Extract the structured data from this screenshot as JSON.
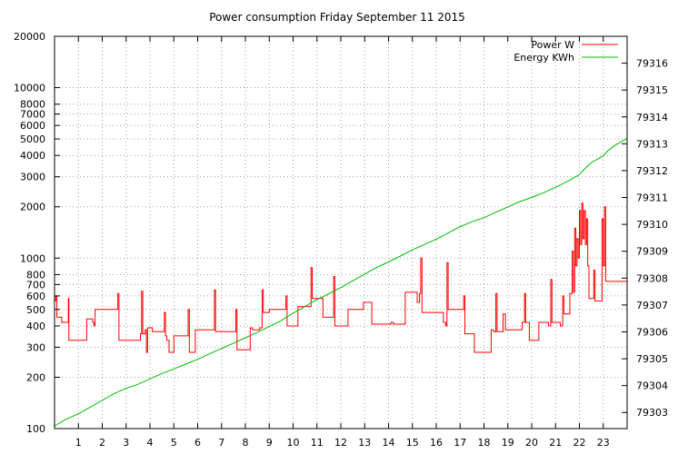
{
  "chart_data": {
    "type": "line",
    "title": "Power consumption Friday September 11 2015",
    "x": {
      "range": [
        0,
        24
      ],
      "ticks": [
        1,
        2,
        3,
        4,
        5,
        6,
        7,
        8,
        9,
        10,
        11,
        12,
        13,
        14,
        15,
        16,
        17,
        18,
        19,
        20,
        21,
        22,
        23
      ],
      "tick_labels": [
        "1",
        "2",
        "3",
        "4",
        "5",
        "6",
        "7",
        "8",
        "9",
        "10",
        "11",
        "12",
        "13",
        "14",
        "15",
        "16",
        "17",
        "18",
        "19",
        "20",
        "21",
        "22",
        "23"
      ]
    },
    "y_left": {
      "scale": "log",
      "range": [
        100,
        20000
      ],
      "ticks": [
        100,
        200,
        300,
        400,
        500,
        600,
        700,
        800,
        1000,
        2000,
        3000,
        4000,
        5000,
        6000,
        7000,
        8000,
        10000,
        20000
      ],
      "tick_labels": [
        "100",
        "200",
        "300",
        "400",
        "500",
        "600",
        "700",
        "800",
        "1000",
        "2000",
        "3000",
        "4000",
        "5000",
        "6000",
        "7000",
        "8000",
        "10000",
        "20000"
      ]
    },
    "y_right": {
      "scale": "linear",
      "range": [
        79302.4,
        79317
      ],
      "ticks": [
        79303,
        79304,
        79305,
        79306,
        79307,
        79308,
        79309,
        79310,
        79311,
        79312,
        79313,
        79314,
        79315,
        79316
      ],
      "tick_labels": [
        "79303",
        "79304",
        "79305",
        "79306",
        "79307",
        "79308",
        "79309",
        "79310",
        "79311",
        "79312",
        "79313",
        "79314",
        "79315",
        "79316"
      ]
    },
    "grid": true,
    "legend_position": "top-right",
    "series": [
      {
        "name": "Power W",
        "axis": "left",
        "color": "#ff0000",
        "step": true,
        "points": [
          [
            0,
            560
          ],
          [
            0.05,
            600
          ],
          [
            0.1,
            450
          ],
          [
            0.3,
            420
          ],
          [
            0.55,
            420
          ],
          [
            0.58,
            580
          ],
          [
            0.6,
            330
          ],
          [
            1.0,
            330
          ],
          [
            1.3,
            330
          ],
          [
            1.35,
            440
          ],
          [
            1.6,
            420
          ],
          [
            1.65,
            400
          ],
          [
            1.7,
            500
          ],
          [
            2.5,
            500
          ],
          [
            2.65,
            620
          ],
          [
            2.7,
            330
          ],
          [
            3.5,
            330
          ],
          [
            3.6,
            360
          ],
          [
            3.65,
            640
          ],
          [
            3.7,
            360
          ],
          [
            3.8,
            380
          ],
          [
            3.85,
            280
          ],
          [
            3.9,
            390
          ],
          [
            4.1,
            370
          ],
          [
            4.5,
            370
          ],
          [
            4.6,
            480
          ],
          [
            4.65,
            350
          ],
          [
            4.7,
            330
          ],
          [
            4.8,
            280
          ],
          [
            5.0,
            350
          ],
          [
            5.5,
            350
          ],
          [
            5.6,
            500
          ],
          [
            5.65,
            280
          ],
          [
            5.9,
            380
          ],
          [
            6.5,
            380
          ],
          [
            6.7,
            650
          ],
          [
            6.75,
            370
          ],
          [
            7.5,
            370
          ],
          [
            7.6,
            500
          ],
          [
            7.65,
            290
          ],
          [
            8.1,
            290
          ],
          [
            8.2,
            390
          ],
          [
            8.3,
            380
          ],
          [
            8.5,
            380
          ],
          [
            8.6,
            390
          ],
          [
            8.7,
            650
          ],
          [
            8.75,
            480
          ],
          [
            9.0,
            500
          ],
          [
            9.6,
            500
          ],
          [
            9.7,
            600
          ],
          [
            9.75,
            400
          ],
          [
            10.0,
            400
          ],
          [
            10.2,
            520
          ],
          [
            10.7,
            520
          ],
          [
            10.75,
            880
          ],
          [
            10.8,
            580
          ],
          [
            11.2,
            580
          ],
          [
            11.25,
            450
          ],
          [
            11.6,
            450
          ],
          [
            11.7,
            780
          ],
          [
            11.75,
            400
          ],
          [
            12.2,
            400
          ],
          [
            12.3,
            500
          ],
          [
            12.9,
            500
          ],
          [
            12.95,
            550
          ],
          [
            13.2,
            550
          ],
          [
            13.3,
            410
          ],
          [
            14.0,
            410
          ],
          [
            14.1,
            420
          ],
          [
            14.2,
            410
          ],
          [
            14.6,
            410
          ],
          [
            14.7,
            630
          ],
          [
            15.1,
            630
          ],
          [
            15.2,
            550
          ],
          [
            15.3,
            620
          ],
          [
            15.35,
            1000
          ],
          [
            15.4,
            480
          ],
          [
            16.2,
            480
          ],
          [
            16.3,
            420
          ],
          [
            16.4,
            400
          ],
          [
            16.45,
            940
          ],
          [
            16.5,
            500
          ],
          [
            17.1,
            500
          ],
          [
            17.15,
            600
          ],
          [
            17.2,
            360
          ],
          [
            17.5,
            360
          ],
          [
            17.6,
            280
          ],
          [
            18.2,
            280
          ],
          [
            18.3,
            380
          ],
          [
            18.4,
            370
          ],
          [
            18.5,
            620
          ],
          [
            18.55,
            370
          ],
          [
            18.7,
            370
          ],
          [
            18.8,
            470
          ],
          [
            18.9,
            380
          ],
          [
            19.5,
            380
          ],
          [
            19.6,
            420
          ],
          [
            19.7,
            620
          ],
          [
            19.75,
            420
          ],
          [
            19.9,
            330
          ],
          [
            20.2,
            330
          ],
          [
            20.3,
            420
          ],
          [
            20.5,
            420
          ],
          [
            20.6,
            420
          ],
          [
            20.7,
            400
          ],
          [
            20.8,
            750
          ],
          [
            20.85,
            420
          ],
          [
            21.0,
            420
          ],
          [
            21.2,
            400
          ],
          [
            21.3,
            600
          ],
          [
            21.35,
            470
          ],
          [
            21.5,
            470
          ],
          [
            21.6,
            620
          ],
          [
            21.7,
            1100
          ],
          [
            21.75,
            630
          ],
          [
            21.8,
            1500
          ],
          [
            21.85,
            900
          ],
          [
            21.9,
            1300
          ],
          [
            21.95,
            1000
          ],
          [
            22.0,
            1900
          ],
          [
            22.05,
            1200
          ],
          [
            22.1,
            2100
          ],
          [
            22.15,
            1300
          ],
          [
            22.2,
            1900
          ],
          [
            22.25,
            1200
          ],
          [
            22.3,
            1700
          ],
          [
            22.35,
            900
          ],
          [
            22.4,
            580
          ],
          [
            22.5,
            580
          ],
          [
            22.6,
            850
          ],
          [
            22.65,
            560
          ],
          [
            22.9,
            560
          ],
          [
            22.95,
            1700
          ],
          [
            23.0,
            900
          ],
          [
            23.05,
            2000
          ],
          [
            23.1,
            730
          ],
          [
            23.5,
            730
          ],
          [
            24,
            730
          ]
        ]
      },
      {
        "name": "Energy KWh",
        "axis": "right",
        "color": "#00bb00",
        "step": false,
        "points": [
          [
            0,
            79302.5
          ],
          [
            0.5,
            79302.75
          ],
          [
            1.0,
            79302.95
          ],
          [
            1.5,
            79303.2
          ],
          [
            2.0,
            79303.45
          ],
          [
            2.5,
            79303.7
          ],
          [
            3.0,
            79303.9
          ],
          [
            3.5,
            79304.05
          ],
          [
            4.0,
            79304.25
          ],
          [
            4.5,
            79304.45
          ],
          [
            5.0,
            79304.62
          ],
          [
            5.5,
            79304.8
          ],
          [
            6.0,
            79304.98
          ],
          [
            6.5,
            79305.18
          ],
          [
            7.0,
            79305.38
          ],
          [
            7.5,
            79305.58
          ],
          [
            8.0,
            79305.78
          ],
          [
            8.5,
            79305.98
          ],
          [
            9.0,
            79306.2
          ],
          [
            9.5,
            79306.42
          ],
          [
            10.0,
            79306.7
          ],
          [
            10.5,
            79306.95
          ],
          [
            11.0,
            79307.2
          ],
          [
            11.5,
            79307.42
          ],
          [
            12.0,
            79307.65
          ],
          [
            12.5,
            79307.9
          ],
          [
            13.0,
            79308.15
          ],
          [
            13.5,
            79308.4
          ],
          [
            14.0,
            79308.6
          ],
          [
            14.5,
            79308.82
          ],
          [
            15.0,
            79309.05
          ],
          [
            15.5,
            79309.25
          ],
          [
            16.0,
            79309.45
          ],
          [
            16.5,
            79309.68
          ],
          [
            17.0,
            79309.92
          ],
          [
            17.5,
            79310.1
          ],
          [
            18.0,
            79310.25
          ],
          [
            18.5,
            79310.45
          ],
          [
            19.0,
            79310.65
          ],
          [
            19.5,
            79310.85
          ],
          [
            20.0,
            79311.0
          ],
          [
            20.5,
            79311.18
          ],
          [
            21.0,
            79311.38
          ],
          [
            21.5,
            79311.6
          ],
          [
            22.0,
            79311.85
          ],
          [
            22.2,
            79312.05
          ],
          [
            22.5,
            79312.3
          ],
          [
            22.8,
            79312.45
          ],
          [
            23.0,
            79312.55
          ],
          [
            23.2,
            79312.75
          ],
          [
            23.5,
            79312.95
          ],
          [
            23.7,
            79313.05
          ],
          [
            24,
            79313.2
          ]
        ]
      }
    ]
  }
}
